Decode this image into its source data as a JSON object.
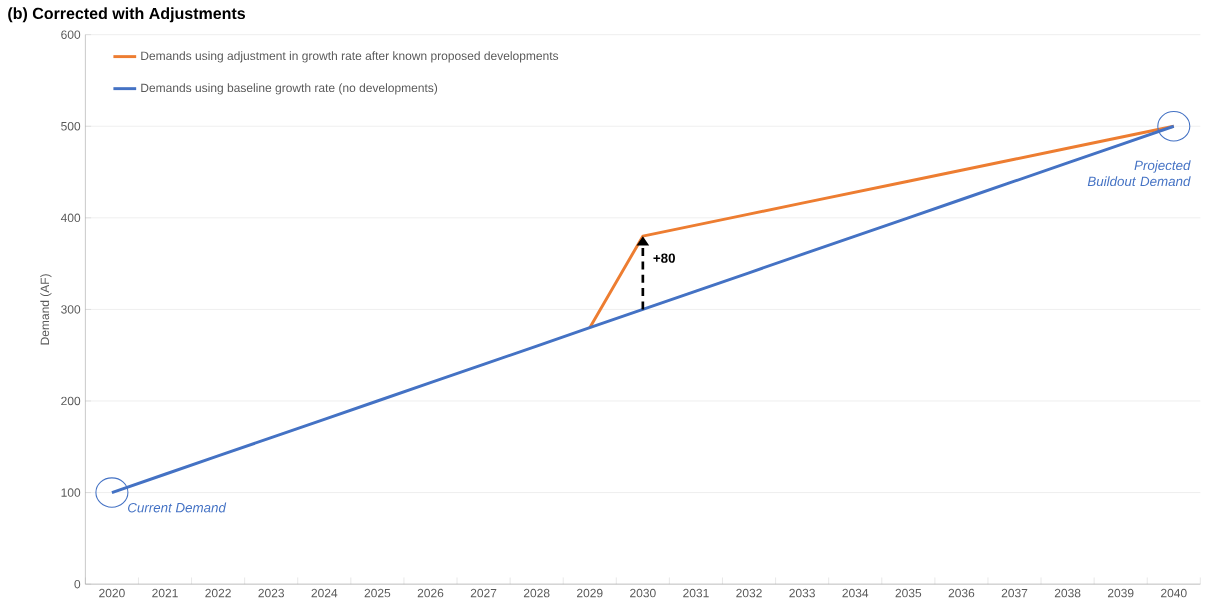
{
  "chart_data": {
    "type": "line",
    "title": "(b)   Corrected with Adjustments",
    "categories": [
      "2020",
      "2021",
      "2022",
      "2023",
      "2024",
      "2025",
      "2026",
      "2027",
      "2028",
      "2029",
      "2030",
      "2031",
      "2032",
      "2033",
      "2034",
      "2035",
      "2036",
      "2037",
      "2038",
      "2039",
      "2040"
    ],
    "series": [
      {
        "name": "Demands using adjustment in growth rate after known proposed developments",
        "color": "#ed7d31",
        "values": [
          null,
          null,
          null,
          null,
          null,
          null,
          null,
          null,
          null,
          280,
          380,
          392,
          404,
          416,
          428,
          440,
          452,
          464,
          476,
          488,
          500
        ]
      },
      {
        "name": "Demands using baseline growth rate (no developments)",
        "color": "#4472c4",
        "values": [
          100,
          120,
          140,
          160,
          180,
          200,
          220,
          240,
          260,
          280,
          300,
          320,
          340,
          360,
          380,
          400,
          420,
          440,
          460,
          480,
          500
        ]
      }
    ],
    "ylabel": "Demand (AF)",
    "ylim": [
      0,
      600
    ],
    "yticks": [
      0,
      100,
      200,
      300,
      400,
      500,
      600
    ],
    "grid": "y",
    "legend": "top left",
    "marker": "none",
    "line_style": "solid",
    "annotations": [
      "+80",
      {
        "text": "Current Demand",
        "x": "2020",
        "y": 100
      },
      {
        "text": "Projected Buildout Demand",
        "x": "2040",
        "y": 500
      }
    ]
  }
}
